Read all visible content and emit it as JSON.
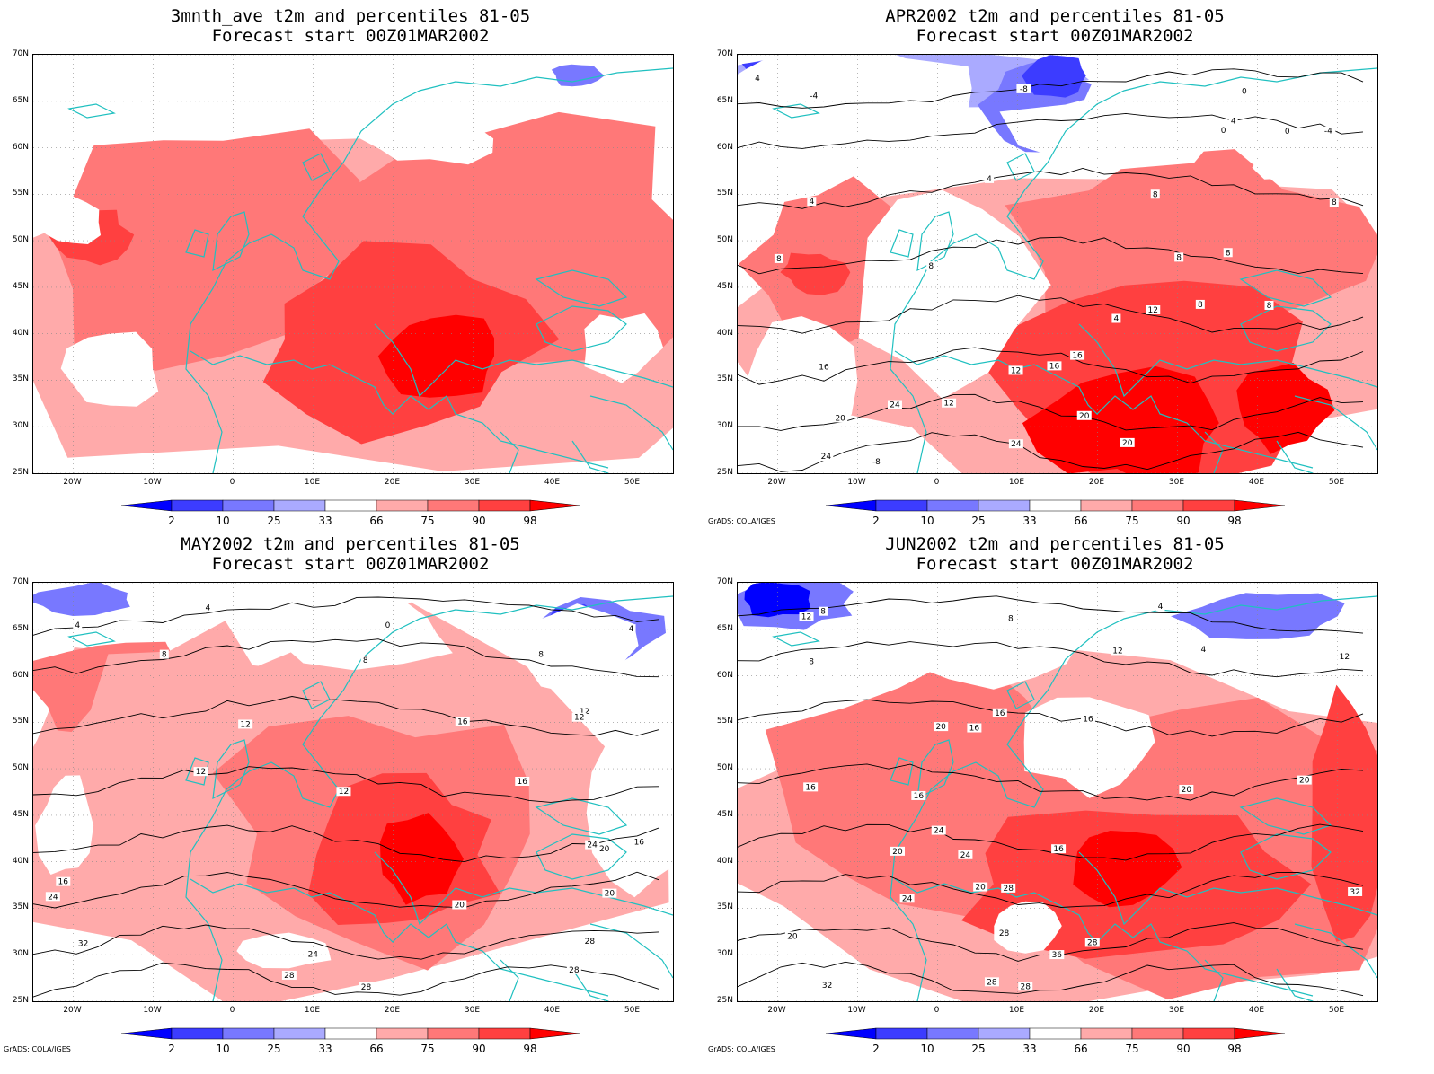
{
  "panels": [
    {
      "title_line1": "3mnth_ave t2m and percentiles 81-05",
      "title_line2": "Forecast start 00Z01MAR2002",
      "credit": "",
      "contour_labels": []
    },
    {
      "title_line1": "APR2002 t2m and percentiles 81-05",
      "title_line2": "Forecast start 00Z01MAR2002",
      "credit": "GrADS: COLA/IGES",
      "contour_labels": [
        "-8",
        "-4",
        "0",
        "4",
        "-4",
        "0",
        "0",
        "4",
        "4",
        "4",
        "8",
        "8",
        "8",
        "8",
        "8",
        "8",
        "4",
        "8",
        "12",
        "8",
        "12",
        "16",
        "16",
        "16",
        "20",
        "12",
        "24",
        "20",
        "24",
        "24",
        "20",
        "-8"
      ]
    },
    {
      "title_line1": "MAY2002 t2m and percentiles 81-05",
      "title_line2": "Forecast start 00Z01MAR2002",
      "credit": "GrADS: COLA/IGES",
      "contour_labels": [
        "0",
        "4",
        "4",
        "4",
        "8",
        "8",
        "8",
        "12",
        "12",
        "12",
        "16",
        "12",
        "16",
        "12",
        "16",
        "24",
        "20",
        "20",
        "24",
        "16",
        "20",
        "24",
        "28",
        "32",
        "28",
        "28",
        "28"
      ]
    },
    {
      "title_line1": "JUN2002 t2m and percentiles 81-05",
      "title_line2": "Forecast start 00Z01MAR2002",
      "credit": "GrADS: COLA/IGES",
      "contour_labels": [
        "4",
        "8",
        "8",
        "12",
        "8",
        "4",
        "12",
        "12",
        "16",
        "16",
        "16",
        "20",
        "16",
        "20",
        "20",
        "16",
        "20",
        "16",
        "24",
        "24",
        "28",
        "20",
        "24",
        "32",
        "36",
        "28",
        "28",
        "20",
        "32",
        "28",
        "28"
      ]
    }
  ],
  "lat_ticks": [
    "70N",
    "65N",
    "60N",
    "55N",
    "50N",
    "45N",
    "40N",
    "35N",
    "30N",
    "25N"
  ],
  "lon_ticks": [
    "20W",
    "10W",
    "0",
    "10E",
    "20E",
    "30E",
    "40E",
    "50E"
  ],
  "colorbar_labels": [
    "2",
    "10",
    "25",
    "33",
    "66",
    "75",
    "90",
    "98"
  ],
  "colors": {
    "below_2": "#0000ff",
    "p2_10": "#3c3cff",
    "p10_25": "#7878ff",
    "p25_33": "#aaaaff",
    "p33_66": "#ffffff",
    "p66_75": "#ffaaaa",
    "p75_90": "#ff7878",
    "p90_98": "#ff4040",
    "above_98": "#ff0000",
    "coast": "#20c0c0",
    "contour": "#000000"
  }
}
